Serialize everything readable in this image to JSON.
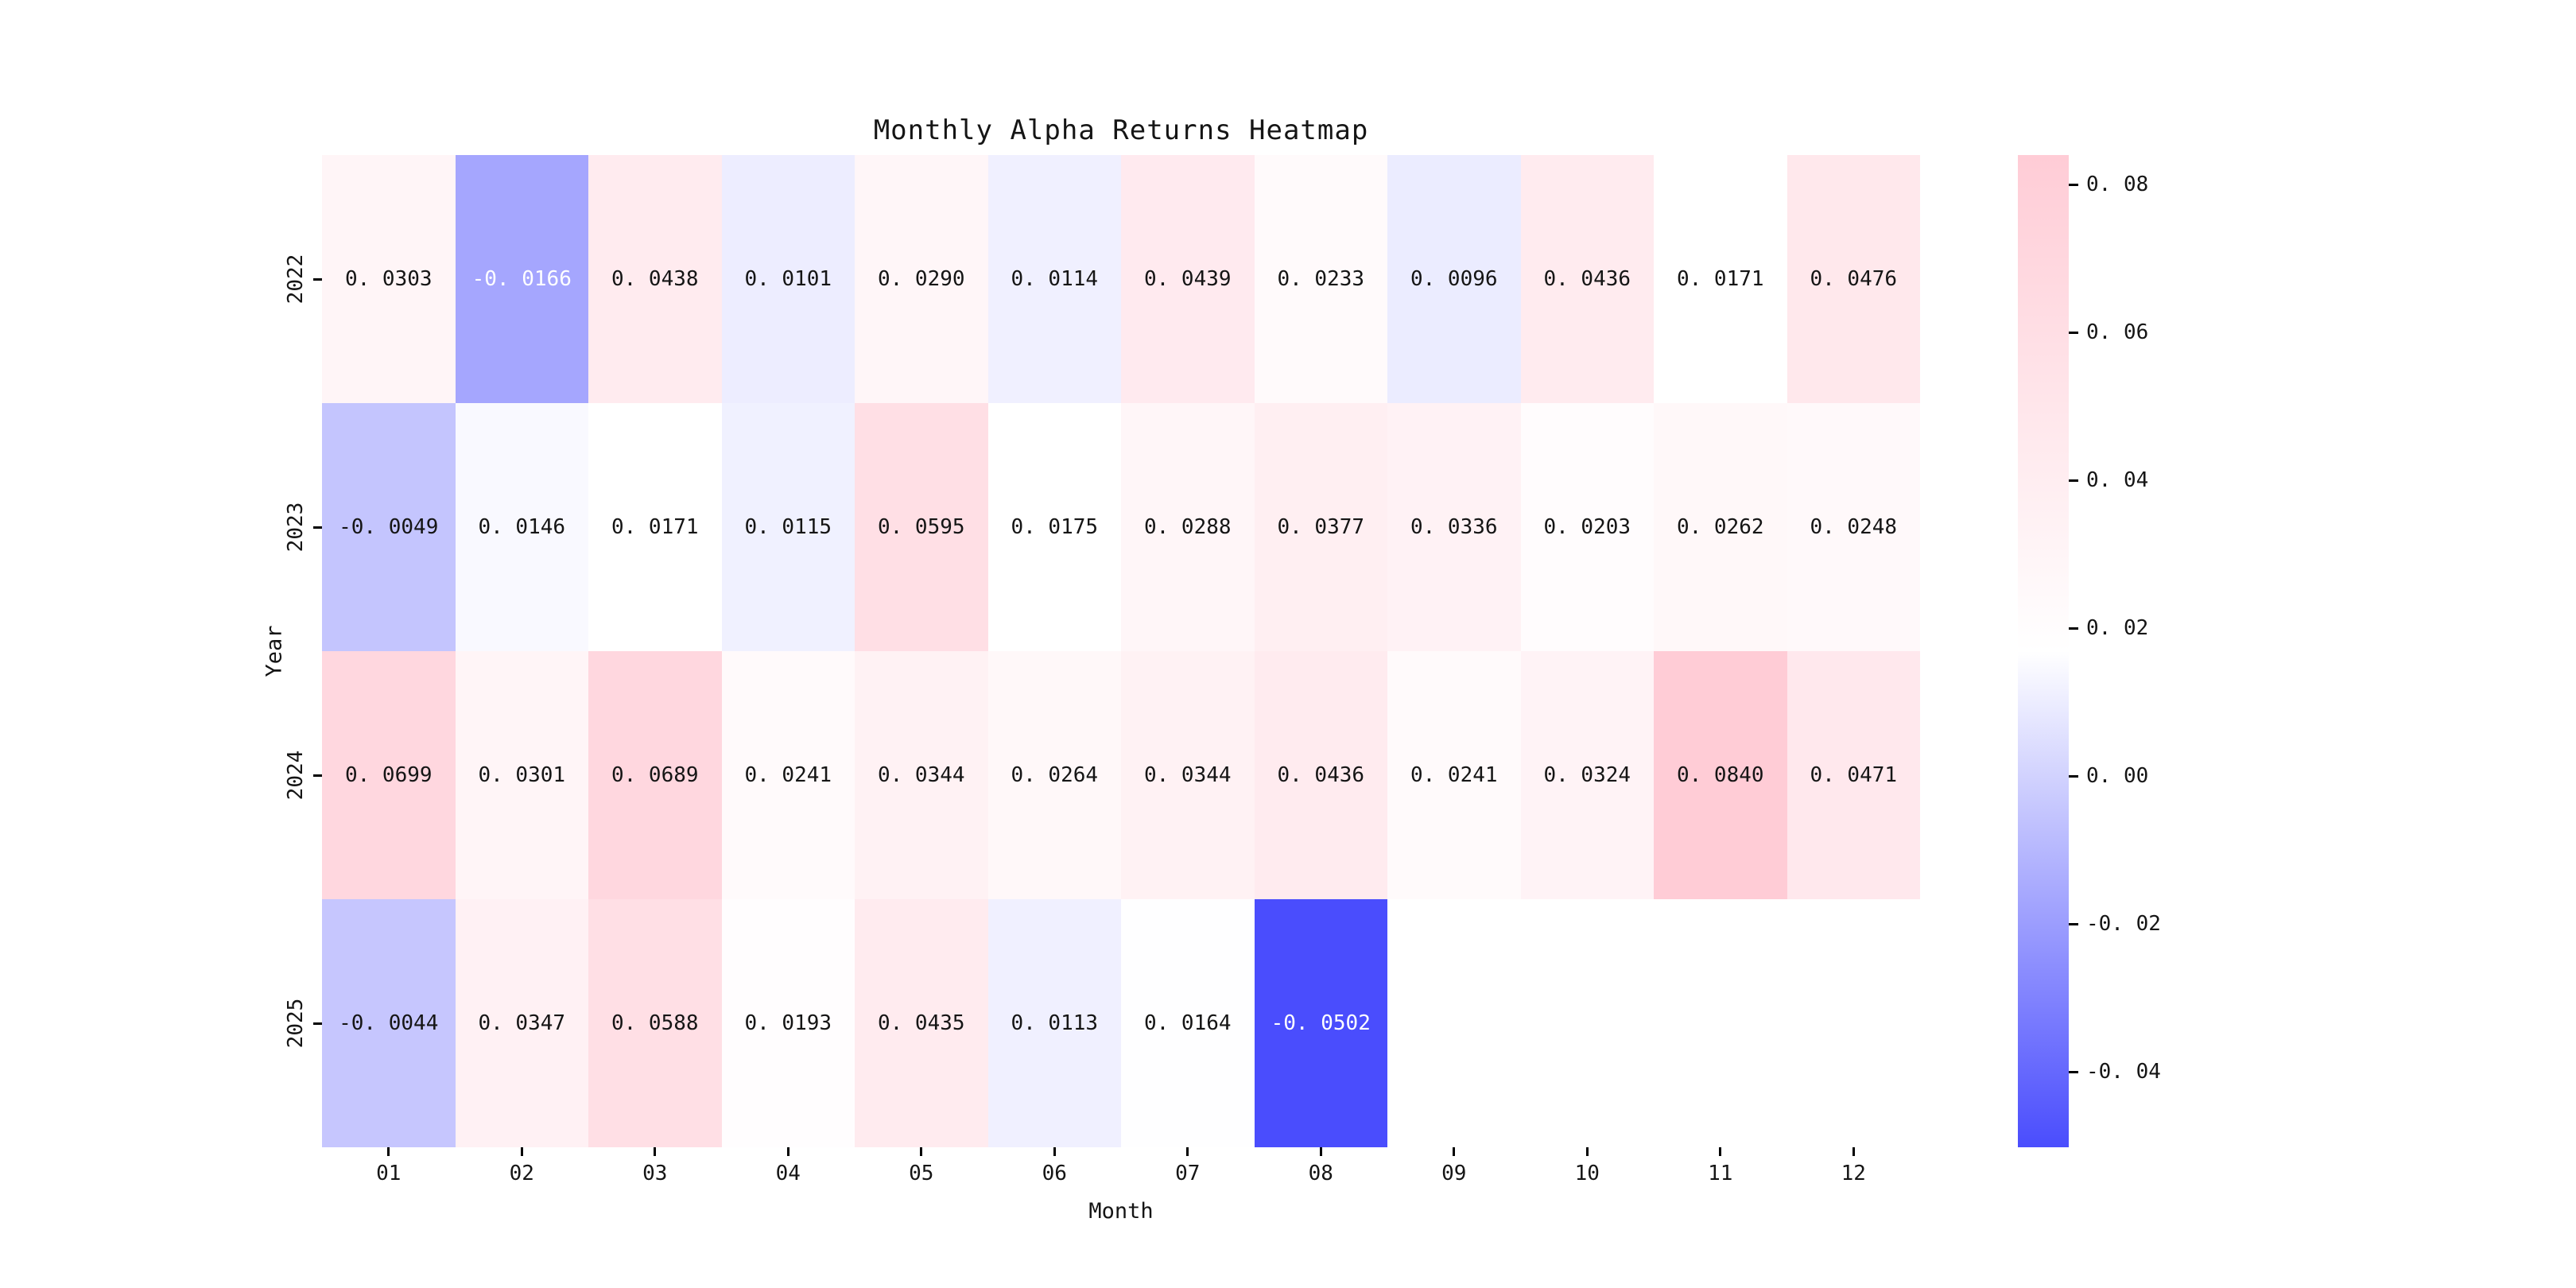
{
  "chart_data": {
    "type": "heatmap",
    "title": "Monthly Alpha Returns Heatmap",
    "xlabel": "Month",
    "ylabel": "Year",
    "x": [
      "01",
      "02",
      "03",
      "04",
      "05",
      "06",
      "07",
      "08",
      "09",
      "10",
      "11",
      "12"
    ],
    "y": [
      "2022",
      "2023",
      "2024",
      "2025"
    ],
    "values": [
      [
        0.0303,
        -0.0166,
        0.0438,
        0.0101,
        0.029,
        0.0114,
        0.0439,
        0.0233,
        0.0096,
        0.0436,
        0.0171,
        0.0476
      ],
      [
        -0.0049,
        0.0146,
        0.0171,
        0.0115,
        0.0595,
        0.0175,
        0.0288,
        0.0377,
        0.0336,
        0.0203,
        0.0262,
        0.0248
      ],
      [
        0.0699,
        0.0301,
        0.0689,
        0.0241,
        0.0344,
        0.0264,
        0.0344,
        0.0436,
        0.0241,
        0.0324,
        0.084,
        0.0471
      ],
      [
        -0.0044,
        0.0347,
        0.0588,
        0.0193,
        0.0435,
        0.0113,
        0.0164,
        -0.0502,
        null,
        null,
        null,
        null
      ]
    ],
    "colorbar": {
      "vmin": -0.0502,
      "vmax": 0.084,
      "ticks": [
        0.08,
        0.06,
        0.04,
        0.02,
        0.0,
        -0.02,
        -0.04
      ],
      "color_min": "#4a4dfd",
      "color_mid": "#ffffff",
      "color_max": "#ffccd6"
    },
    "colors": {
      "annotation_dark": "#151515",
      "annotation_light": "#ffffff",
      "background": "#ffffff"
    },
    "layout": {
      "grid_on": false,
      "legend_position": "right-colorbar",
      "missing_cells": "blank-white"
    }
  }
}
